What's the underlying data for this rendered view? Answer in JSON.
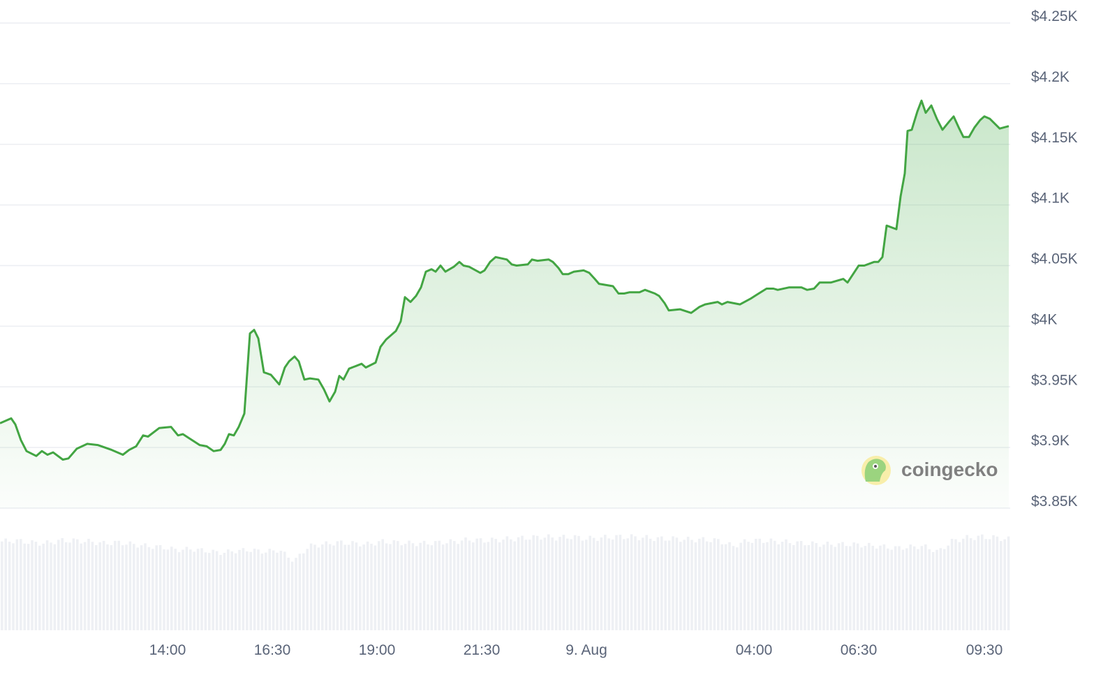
{
  "chart_data": {
    "type": "area",
    "title": "",
    "xlabel": "",
    "ylabel": "",
    "ylim": [
      3850,
      4250
    ],
    "y_ticks": [
      {
        "value": 4250,
        "label": "$4.25K"
      },
      {
        "value": 4200,
        "label": "$4.2K"
      },
      {
        "value": 4150,
        "label": "$4.15K"
      },
      {
        "value": 4100,
        "label": "$4.1K"
      },
      {
        "value": 4050,
        "label": "$4.05K"
      },
      {
        "value": 4000,
        "label": "$4K"
      },
      {
        "value": 3950,
        "label": "$3.95K"
      },
      {
        "value": 3900,
        "label": "$3.9K"
      },
      {
        "value": 3850,
        "label": "$3.85K"
      }
    ],
    "x_ticks": [
      {
        "time": "Aug 8 14:00",
        "label": "14:00"
      },
      {
        "time": "Aug 8 16:30",
        "label": "16:30"
      },
      {
        "time": "Aug 8 19:00",
        "label": "19:00"
      },
      {
        "time": "Aug 8 21:30",
        "label": "21:30"
      },
      {
        "time": "Aug 9 00:00",
        "label": "9. Aug"
      },
      {
        "time": "Aug 9 04:00",
        "label": "04:00"
      },
      {
        "time": "Aug 9 06:30",
        "label": "06:30"
      },
      {
        "time": "Aug 9 09:30",
        "label": "09:30"
      }
    ],
    "grid": true,
    "y_axis_position": "right",
    "line_color": "#43a543",
    "fill_color": "#4caf50",
    "volume_color": "#eef0f4",
    "series": [
      {
        "x": [
          "Aug 8 10:00",
          "Aug 8 10:16",
          "Aug 8 10:22",
          "Aug 8 10:30",
          "Aug 8 10:38",
          "Aug 8 10:52",
          "Aug 8 11:00",
          "Aug 8 11:08",
          "Aug 8 11:16",
          "Aug 8 11:30",
          "Aug 8 11:38",
          "Aug 8 11:50",
          "Aug 8 12:05",
          "Aug 8 12:20",
          "Aug 8 12:40",
          "Aug 8 12:56",
          "Aug 8 13:05",
          "Aug 8 13:15",
          "Aug 8 13:25",
          "Aug 8 13:32",
          "Aug 8 13:48",
          "Aug 8 14:05",
          "Aug 8 14:15",
          "Aug 8 14:22",
          "Aug 8 14:30",
          "Aug 8 14:46",
          "Aug 8 14:56",
          "Aug 8 15:06",
          "Aug 8 15:16",
          "Aug 8 15:22",
          "Aug 8 15:28",
          "Aug 8 15:35",
          "Aug 8 15:42",
          "Aug 8 15:50",
          "Aug 8 15:58",
          "Aug 8 16:04",
          "Aug 8 16:10",
          "Aug 8 16:18",
          "Aug 8 16:28",
          "Aug 8 16:40",
          "Aug 8 16:48",
          "Aug 8 16:54",
          "Aug 8 17:02",
          "Aug 8 17:08",
          "Aug 8 17:16",
          "Aug 8 17:24",
          "Aug 8 17:36",
          "Aug 8 17:44",
          "Aug 8 17:52",
          "Aug 8 18:00",
          "Aug 8 18:06",
          "Aug 8 18:12",
          "Aug 8 18:20",
          "Aug 8 18:38",
          "Aug 8 18:44",
          "Aug 8 18:58",
          "Aug 8 19:05",
          "Aug 8 19:13",
          "Aug 8 19:27",
          "Aug 8 19:34",
          "Aug 8 19:40",
          "Aug 8 19:48",
          "Aug 8 19:56",
          "Aug 8 20:03",
          "Aug 8 20:10",
          "Aug 8 20:18",
          "Aug 8 20:24",
          "Aug 8 20:31",
          "Aug 8 20:38",
          "Aug 8 20:50",
          "Aug 8 20:58",
          "Aug 8 21:04",
          "Aug 8 21:12",
          "Aug 8 21:28",
          "Aug 8 21:34",
          "Aug 8 21:42",
          "Aug 8 21:50",
          "Aug 8 22:06",
          "Aug 8 22:13",
          "Aug 8 22:20",
          "Aug 8 22:36",
          "Aug 8 22:42",
          "Aug 8 22:50",
          "Aug 8 23:06",
          "Aug 8 23:12",
          "Aug 8 23:20",
          "Aug 8 23:26",
          "Aug 8 23:34",
          "Aug 8 23:42",
          "Aug 8 23:56",
          "Aug 9 00:04",
          "Aug 9 00:12",
          "Aug 9 00:18",
          "Aug 9 00:38",
          "Aug 9 00:46",
          "Aug 9 00:54",
          "Aug 9 01:02",
          "Aug 9 01:16",
          "Aug 9 01:24",
          "Aug 9 01:38",
          "Aug 9 01:44",
          "Aug 9 01:52",
          "Aug 9 01:58",
          "Aug 9 02:14",
          "Aug 9 02:30",
          "Aug 9 02:42",
          "Aug 9 02:50",
          "Aug 9 03:08",
          "Aug 9 03:14",
          "Aug 9 03:22",
          "Aug 9 03:40",
          "Aug 9 03:56",
          "Aug 9 04:04",
          "Aug 9 04:18",
          "Aug 9 04:28",
          "Aug 9 04:34",
          "Aug 9 04:50",
          "Aug 9 05:08",
          "Aug 9 05:16",
          "Aug 9 05:26",
          "Aug 9 05:34",
          "Aug 9 05:50",
          "Aug 9 06:08",
          "Aug 9 06:14",
          "Aug 9 06:22",
          "Aug 9 06:30",
          "Aug 9 06:38",
          "Aug 9 06:52",
          "Aug 9 06:58",
          "Aug 9 07:04",
          "Aug 9 07:10",
          "Aug 9 07:24",
          "Aug 9 07:30",
          "Aug 9 07:36",
          "Aug 9 07:40",
          "Aug 9 07:46",
          "Aug 9 07:54",
          "Aug 9 08:00",
          "Aug 9 08:06",
          "Aug 9 08:14",
          "Aug 9 08:22",
          "Aug 9 08:30",
          "Aug 9 08:40",
          "Aug 9 08:46",
          "Aug 9 08:54",
          "Aug 9 09:00",
          "Aug 9 09:08",
          "Aug 9 09:16",
          "Aug 9 09:24",
          "Aug 9 09:30",
          "Aug 9 09:38",
          "Aug 9 09:52",
          "Aug 9 10:05"
        ],
        "values": [
          3920,
          3924,
          3919,
          3906,
          3897,
          3893,
          3897,
          3894,
          3896,
          3890,
          3891,
          3899,
          3903,
          3902,
          3898,
          3894,
          3898,
          3901,
          3910,
          3909,
          3916,
          3917,
          3910,
          3911,
          3908,
          3902,
          3901,
          3897,
          3898,
          3903,
          3911,
          3910,
          3917,
          3928,
          3994,
          3997,
          3990,
          3962,
          3960,
          3952,
          3966,
          3971,
          3975,
          3971,
          3956,
          3957,
          3956,
          3948,
          3938,
          3946,
          3959,
          3956,
          3965,
          3969,
          3966,
          3970,
          3983,
          3989,
          3996,
          4004,
          4024,
          4020,
          4025,
          4032,
          4045,
          4047,
          4045,
          4050,
          4045,
          4049,
          4053,
          4050,
          4049,
          4044,
          4046,
          4053,
          4057,
          4055,
          4051,
          4050,
          4051,
          4055,
          4054,
          4055,
          4053,
          4048,
          4043,
          4043,
          4045,
          4046,
          4044,
          4039,
          4035,
          4033,
          4027,
          4027,
          4028,
          4028,
          4030,
          4027,
          4025,
          4019,
          4013,
          4014,
          4011,
          4016,
          4018,
          4020,
          4018,
          4020,
          4018,
          4023,
          4026,
          4031,
          4031,
          4030,
          4032,
          4032,
          4030,
          4031,
          4036,
          4036,
          4039,
          4036,
          4043,
          4050,
          4050,
          4053,
          4053,
          4057,
          4083,
          4080,
          4107,
          4126,
          4161,
          4162,
          4177,
          4186,
          4176,
          4182,
          4171,
          4162,
          4169,
          4173,
          4163,
          4156,
          4156,
          4164,
          4170,
          4173,
          4171,
          4163,
          4165
        ]
      }
    ],
    "volume_relative": [
      0.95,
      0.96,
      0.94,
      0.93,
      0.96,
      0.96,
      0.95,
      0.93,
      0.94,
      0.92,
      0.9,
      0.89,
      0.86,
      0.87,
      0.85,
      0.83,
      0.85,
      0.86,
      0.84,
      0.86,
      0.74,
      0.9,
      0.92,
      0.94,
      0.93,
      0.92,
      0.95,
      0.94,
      0.93,
      0.93,
      0.94,
      0.95,
      0.97,
      0.96,
      0.97,
      0.98,
      0.99,
      1.0,
      0.99,
      1.0,
      0.98,
      0.99,
      1.0,
      1.0,
      0.99,
      0.98,
      0.98,
      0.97,
      0.97,
      0.96,
      0.9,
      0.96,
      0.96,
      0.95,
      0.94,
      0.93,
      0.92,
      0.92,
      0.92,
      0.91,
      0.9,
      0.88,
      0.89,
      0.9,
      0.84,
      0.96,
      0.99,
      1.0,
      0.99,
      0.97
    ]
  },
  "watermark": {
    "text": "coingecko"
  }
}
